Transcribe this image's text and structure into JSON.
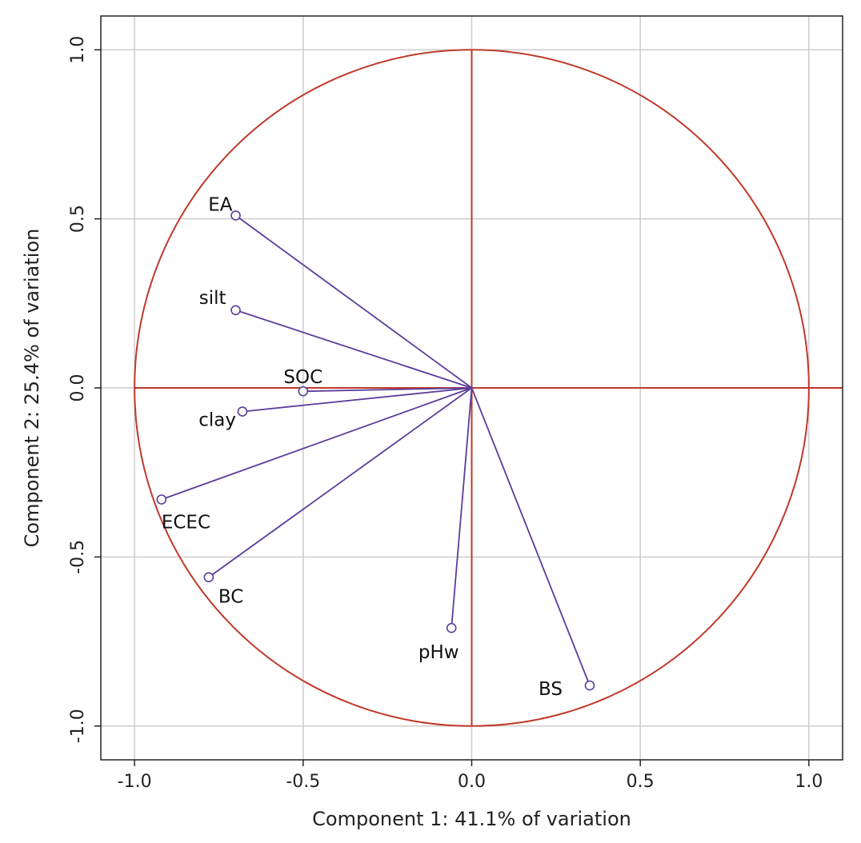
{
  "chart_data": {
    "type": "scatter",
    "subtype": "pca-loading-biplot",
    "title": "",
    "xlabel": "Component 1: 41.1% of variation",
    "ylabel": "Component 2: 25.4% of variation",
    "xlim": [
      -1.1,
      1.1
    ],
    "ylim": [
      -1.1,
      1.1
    ],
    "xticks": [
      -1.0,
      -0.5,
      0.0,
      0.5,
      1.0
    ],
    "yticks": [
      -1.0,
      -0.5,
      0.0,
      0.5,
      1.0
    ],
    "xtick_labels": [
      "-1.0",
      "-0.5",
      "0.0",
      "0.5",
      "1.0"
    ],
    "ytick_labels": [
      "-1.0",
      "-0.5",
      "0.0",
      "0.5",
      "1.0"
    ],
    "grid": true,
    "unit_circle": true,
    "points": [
      {
        "label": "EA",
        "x": -0.7,
        "y": 0.51
      },
      {
        "label": "silt",
        "x": -0.7,
        "y": 0.23
      },
      {
        "label": "SOC",
        "x": -0.5,
        "y": -0.01
      },
      {
        "label": "clay",
        "x": -0.68,
        "y": -0.07
      },
      {
        "label": "ECEC",
        "x": -0.92,
        "y": -0.33
      },
      {
        "label": "BC",
        "x": -0.78,
        "y": -0.56
      },
      {
        "label": "pHw",
        "x": -0.06,
        "y": -0.71
      },
      {
        "label": "BS",
        "x": 0.35,
        "y": -0.88
      }
    ],
    "colors": {
      "circle": "#c0392b",
      "axes": "#c0392b",
      "vectors": "#5b3d9a",
      "grid": "#cccccc"
    }
  }
}
